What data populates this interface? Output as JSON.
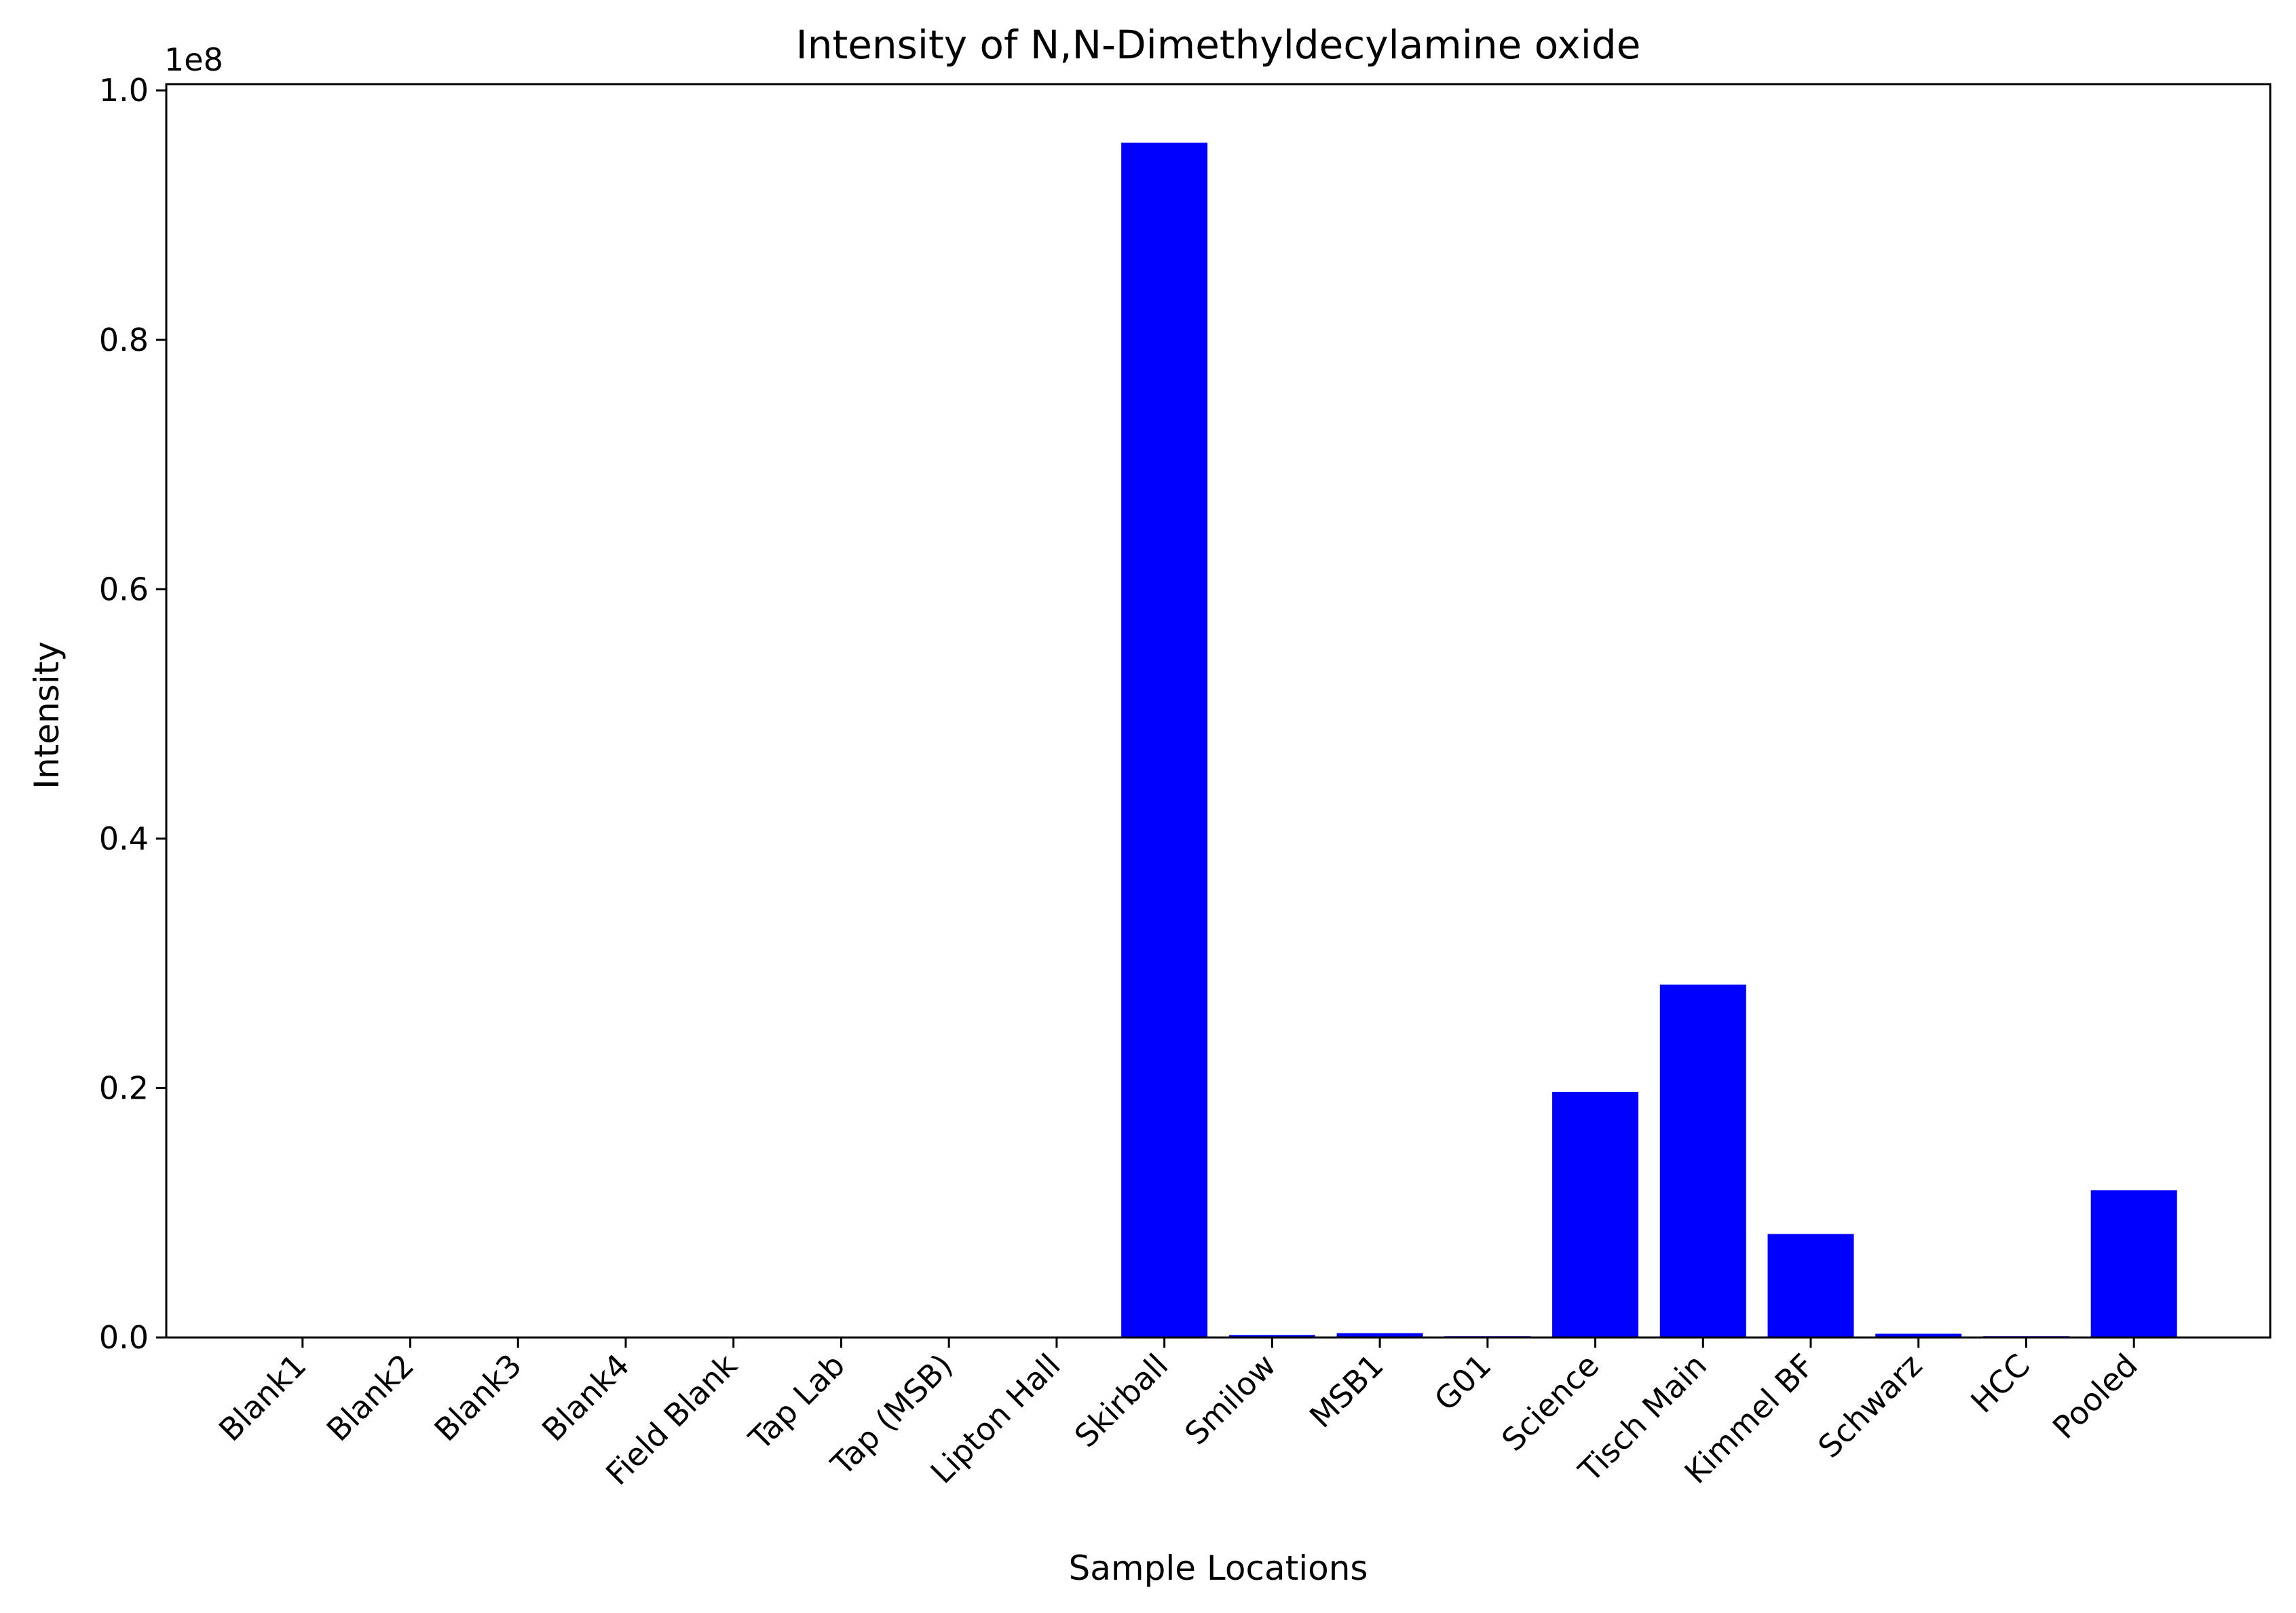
{
  "chart_data": {
    "type": "bar",
    "title": "Intensity of N,N-Dimethyldecylamine oxide",
    "xlabel": "Sample Locations",
    "ylabel": "Intensity",
    "y_offset_label": "1e8",
    "y_scale_factor": 100000000,
    "ylim": [
      0,
      100500000
    ],
    "yticks": [
      0,
      20000000,
      40000000,
      60000000,
      80000000,
      100000000
    ],
    "ytick_labels": [
      "0.0",
      "0.2",
      "0.4",
      "0.6",
      "0.8",
      "1.0"
    ],
    "grid": false,
    "legend": "none",
    "bar_color": "#0000ff",
    "categories": [
      "Blank1",
      "Blank2",
      "Blank3",
      "Blank4",
      "Field Blank",
      "Tap Lab",
      "Tap (MSB)",
      "Lipton Hall",
      "Skirball",
      "Smilow",
      "MSB1",
      "G01",
      "Science",
      "Tisch Main",
      "Kimmel BF",
      "Schwarz",
      "HCC",
      "Pooled"
    ],
    "values": [
      0,
      0,
      0,
      0,
      0,
      0,
      0,
      0,
      95800000,
      200000,
      350000,
      100000,
      19700000,
      28300000,
      8300000,
      300000,
      100000,
      11800000
    ]
  }
}
